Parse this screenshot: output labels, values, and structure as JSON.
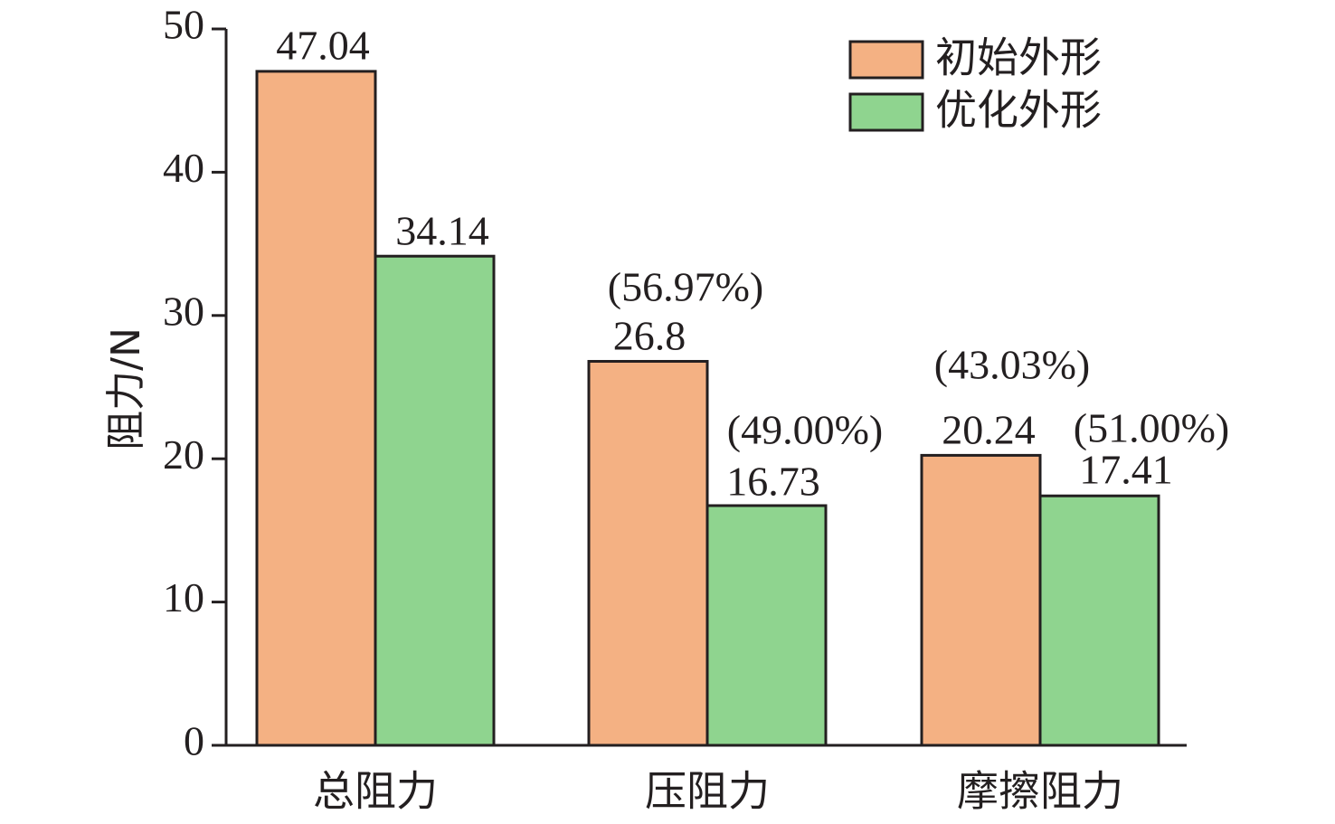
{
  "chart_data": {
    "type": "bar",
    "categories": [
      "总阻力",
      "压阻力",
      "摩擦阻力"
    ],
    "series": [
      {
        "name": "初始外形",
        "color": "#F4B183",
        "values": [
          47.04,
          26.8,
          20.24
        ],
        "value_labels": [
          "47.04",
          "26.8",
          "20.24"
        ],
        "pct_labels": [
          "",
          "(56.97%)",
          "(43.03%)"
        ]
      },
      {
        "name": "优化外形",
        "color": "#8FD48F",
        "values": [
          34.14,
          16.73,
          17.41
        ],
        "value_labels": [
          "34.14",
          "16.73",
          "17.41"
        ],
        "pct_labels": [
          "",
          "(49.00%)",
          "(51.00%)"
        ]
      }
    ],
    "xlabel": "",
    "ylabel": "阻力/N",
    "ylim": [
      0,
      50
    ],
    "yticks": [
      0,
      10,
      20,
      30,
      40,
      50
    ],
    "grid": false,
    "legend": "top-right"
  }
}
